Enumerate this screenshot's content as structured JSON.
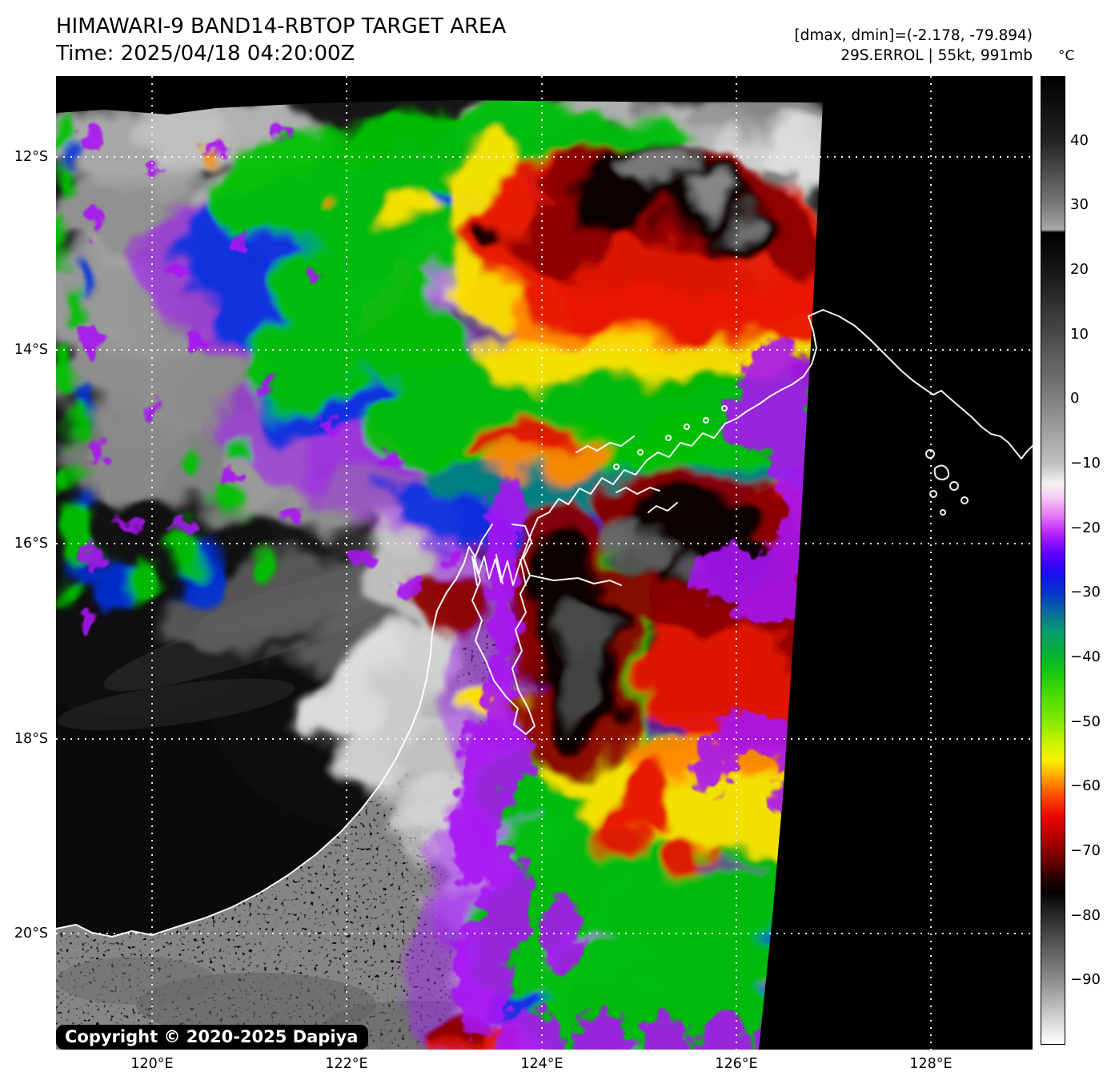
{
  "header": {
    "title": "HIMAWARI-9 BAND14-RBTOP TARGET AREA",
    "time": "Time: 2025/04/18 04:20:00Z",
    "metrics": "[dmax, dmin]=(-2.178, -79.894)",
    "storm": "29S.ERROL | 55kt, 991mb"
  },
  "colorbar": {
    "unit": "°C",
    "tick_labels": [
      "40",
      "30",
      "20",
      "10",
      "0",
      "−10",
      "−20",
      "−30",
      "−40",
      "−50",
      "−60",
      "−70",
      "−80",
      "−90"
    ]
  },
  "axes": {
    "lon_labels": [
      "120°E",
      "122°E",
      "124°E",
      "126°E",
      "128°E"
    ],
    "lat_labels": [
      "12°S",
      "14°S",
      "16°S",
      "18°S",
      "20°S"
    ]
  },
  "map": {
    "copyright": "Copyright © 2020-2025 Dapiya"
  }
}
